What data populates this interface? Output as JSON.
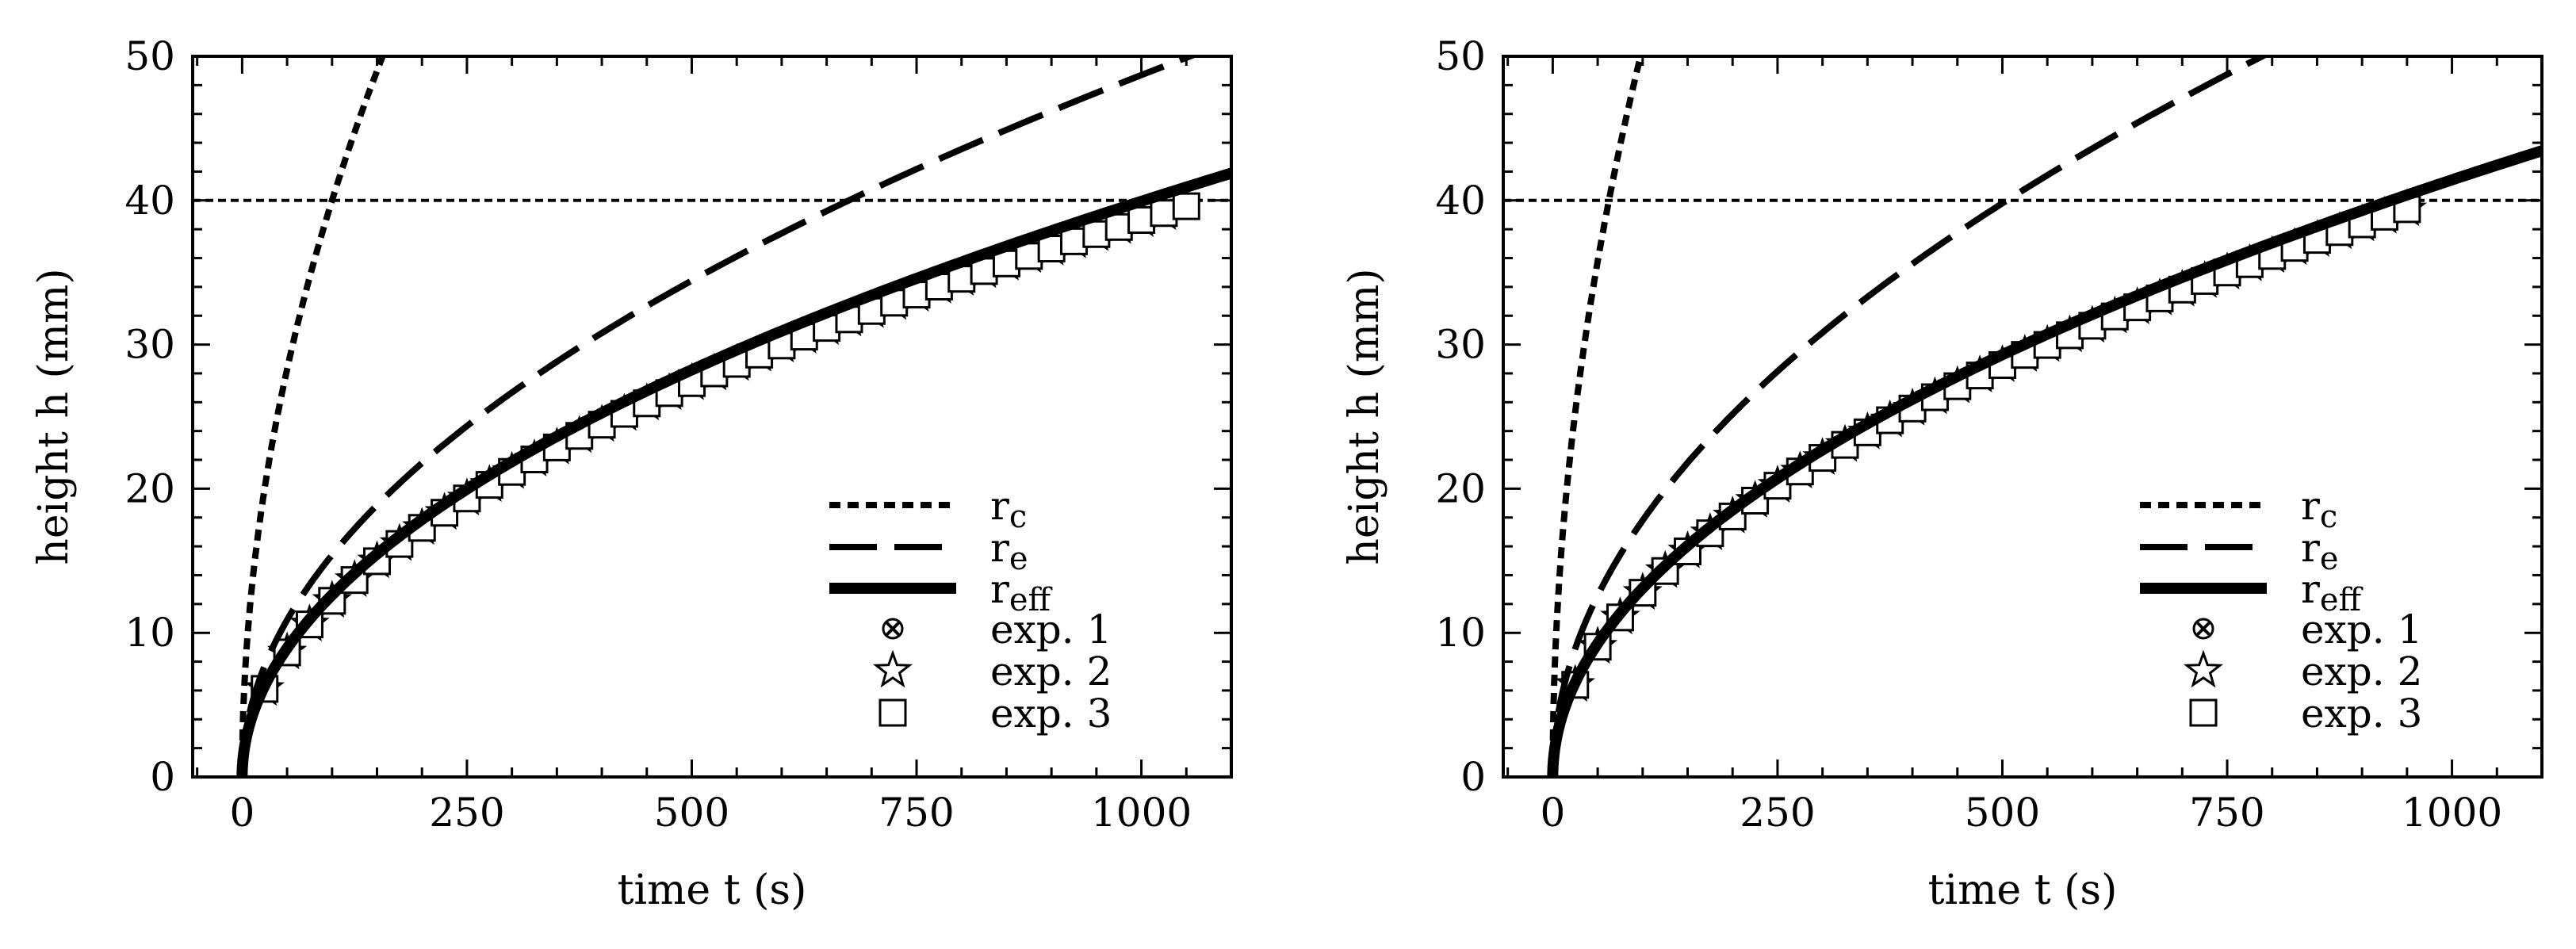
{
  "chart_data": [
    {
      "type": "line",
      "xlabel": "time t (s)",
      "ylabel": "height h (mm)",
      "xlim": [
        -55,
        1100
      ],
      "ylim": [
        0,
        50
      ],
      "xticks": [
        0,
        250,
        500,
        750,
        1000
      ],
      "xtick_labels": [
        "0",
        "250",
        "500",
        "750",
        "1000"
      ],
      "yticks": [
        0,
        10,
        20,
        30,
        40,
        50
      ],
      "ytick_labels": [
        "0",
        "10",
        "20",
        "30",
        "40",
        "50"
      ],
      "reference_line": {
        "y": 40
      },
      "legend_position": "bottom-right",
      "series": [
        {
          "name": "r",
          "sub": "c",
          "style": "dotted",
          "coef": 4.0
        },
        {
          "name": "r",
          "sub": "e",
          "style": "dashed",
          "coef": 1.54
        },
        {
          "name": "r",
          "sub": "eff",
          "style": "solid",
          "coef": 1.263
        }
      ],
      "markers": [
        {
          "label": "exp. 1",
          "symbol": "x-circle",
          "coef": 1.222,
          "tmax": 1035
        },
        {
          "label": "exp. 2",
          "symbol": "star",
          "coef": 1.222,
          "tmax": 1040
        },
        {
          "label": "exp. 3",
          "symbol": "square",
          "coef": 1.222,
          "tmax": 1050
        }
      ]
    },
    {
      "type": "line",
      "xlabel": "time t (s)",
      "ylabel": "height h (mm)",
      "xlim": [
        -55,
        1100
      ],
      "ylim": [
        0,
        50
      ],
      "xticks": [
        0,
        250,
        500,
        750,
        1000
      ],
      "xtick_labels": [
        "0",
        "250",
        "500",
        "750",
        "1000"
      ],
      "yticks": [
        0,
        10,
        20,
        30,
        40,
        50
      ],
      "ytick_labels": [
        "0",
        "10",
        "20",
        "30",
        "40",
        "50"
      ],
      "reference_line": {
        "y": 40
      },
      "legend_position": "bottom-right",
      "series": [
        {
          "name": "r",
          "sub": "c",
          "style": "dotted",
          "coef": 5.06
        },
        {
          "name": "r",
          "sub": "e",
          "style": "dashed",
          "coef": 1.78
        },
        {
          "name": "r",
          "sub": "eff",
          "style": "solid",
          "coef": 1.31
        }
      ],
      "markers": [
        {
          "label": "exp. 1",
          "symbol": "x-circle",
          "coef": 1.278,
          "tmax": 940
        },
        {
          "label": "exp. 2",
          "symbol": "star",
          "coef": 1.278,
          "tmax": 955
        },
        {
          "label": "exp. 3",
          "symbol": "square",
          "coef": 1.278,
          "tmax": 970
        }
      ]
    }
  ]
}
